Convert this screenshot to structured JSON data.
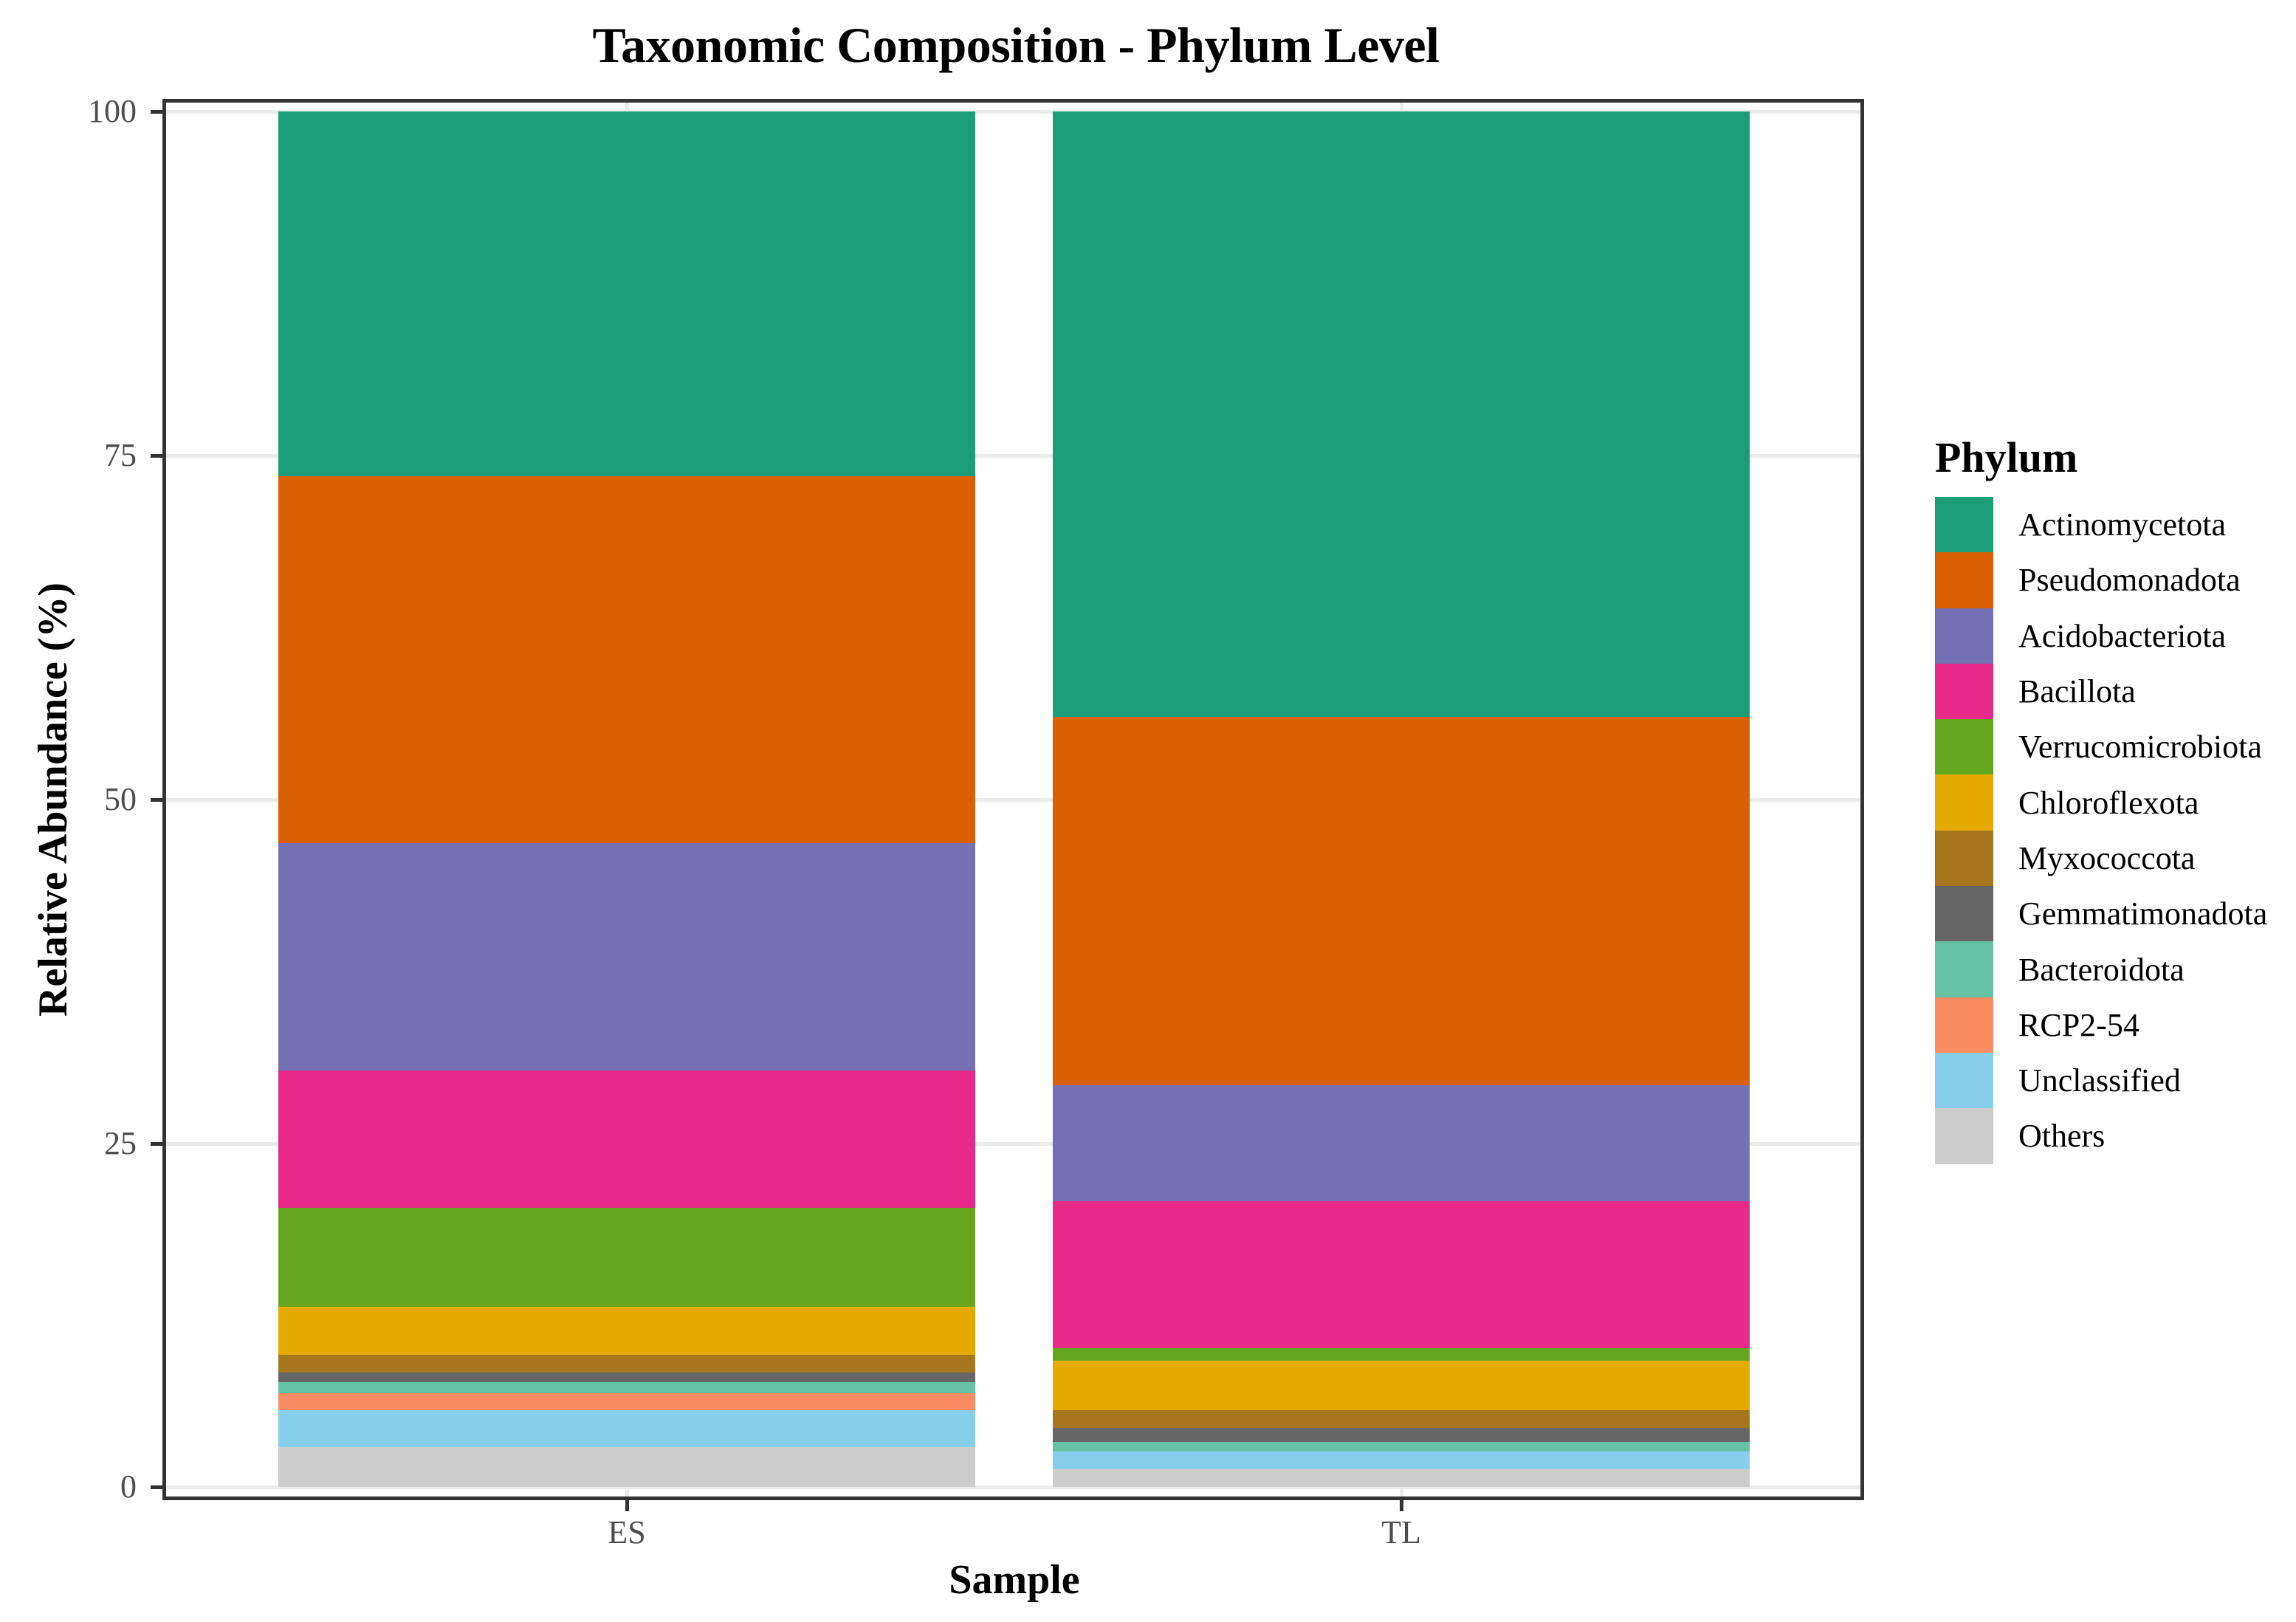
{
  "title": "Taxonomic Composition - Phylum Level",
  "x_axis": {
    "title": "Sample",
    "ticks": [
      "ES",
      "TL"
    ]
  },
  "y_axis": {
    "title": "Relative Abundance (%)",
    "ticks": [
      "0",
      "25",
      "50",
      "75",
      "100"
    ]
  },
  "legend": {
    "title": "Phylum",
    "items": [
      {
        "label": "Actinomycetota",
        "color": "#1B9E77"
      },
      {
        "label": "Pseudomonadota",
        "color": "#D95F02"
      },
      {
        "label": "Acidobacteriota",
        "color": "#7570B3"
      },
      {
        "label": "Bacillota",
        "color": "#E7298A"
      },
      {
        "label": "Verrucomicrobiota",
        "color": "#66A61E"
      },
      {
        "label": "Chloroflexota",
        "color": "#E6AB02"
      },
      {
        "label": "Myxococcota",
        "color": "#A6761D"
      },
      {
        "label": "Gemmatimonadota",
        "color": "#666666"
      },
      {
        "label": "Bacteroidota",
        "color": "#66C2A5"
      },
      {
        "label": "RCP2-54",
        "color": "#FC8D62"
      },
      {
        "label": "Unclassified",
        "color": "#87CEEB"
      },
      {
        "label": "Others",
        "color": "#CCCCCC"
      }
    ]
  },
  "chart_data": {
    "type": "bar",
    "stacked": true,
    "title": "Taxonomic Composition - Phylum Level",
    "xlabel": "Sample",
    "ylabel": "Relative Abundance (%)",
    "categories": [
      "ES",
      "TL"
    ],
    "ylim": [
      0,
      100
    ],
    "yticks": [
      0,
      25,
      50,
      75,
      100
    ],
    "grid": true,
    "legend_position": "right",
    "legend_title": "Phylum",
    "series": [
      {
        "name": "Actinomycetota",
        "color": "#1B9E77",
        "values": [
          26.5,
          44.0
        ]
      },
      {
        "name": "Pseudomonadota",
        "color": "#D95F02",
        "values": [
          26.7,
          26.8
        ]
      },
      {
        "name": "Acidobacteriota",
        "color": "#7570B3",
        "values": [
          16.5,
          8.4
        ]
      },
      {
        "name": "Bacillota",
        "color": "#E7298A",
        "values": [
          10.0,
          10.7
        ]
      },
      {
        "name": "Verrucomicrobiota",
        "color": "#66A61E",
        "values": [
          7.2,
          0.9
        ]
      },
      {
        "name": "Chloroflexota",
        "color": "#E6AB02",
        "values": [
          3.5,
          3.6
        ]
      },
      {
        "name": "Myxococcota",
        "color": "#A6761D",
        "values": [
          1.3,
          1.3
        ]
      },
      {
        "name": "Gemmatimonadota",
        "color": "#666666",
        "values": [
          0.7,
          1.0
        ]
      },
      {
        "name": "Bacteroidota",
        "color": "#66C2A5",
        "values": [
          0.8,
          0.7
        ]
      },
      {
        "name": "RCP2-54",
        "color": "#FC8D62",
        "values": [
          1.2,
          0.0
        ]
      },
      {
        "name": "Unclassified",
        "color": "#87CEEB",
        "values": [
          2.7,
          1.3
        ]
      },
      {
        "name": "Others",
        "color": "#CCCCCC",
        "values": [
          2.9,
          1.3
        ]
      }
    ]
  }
}
